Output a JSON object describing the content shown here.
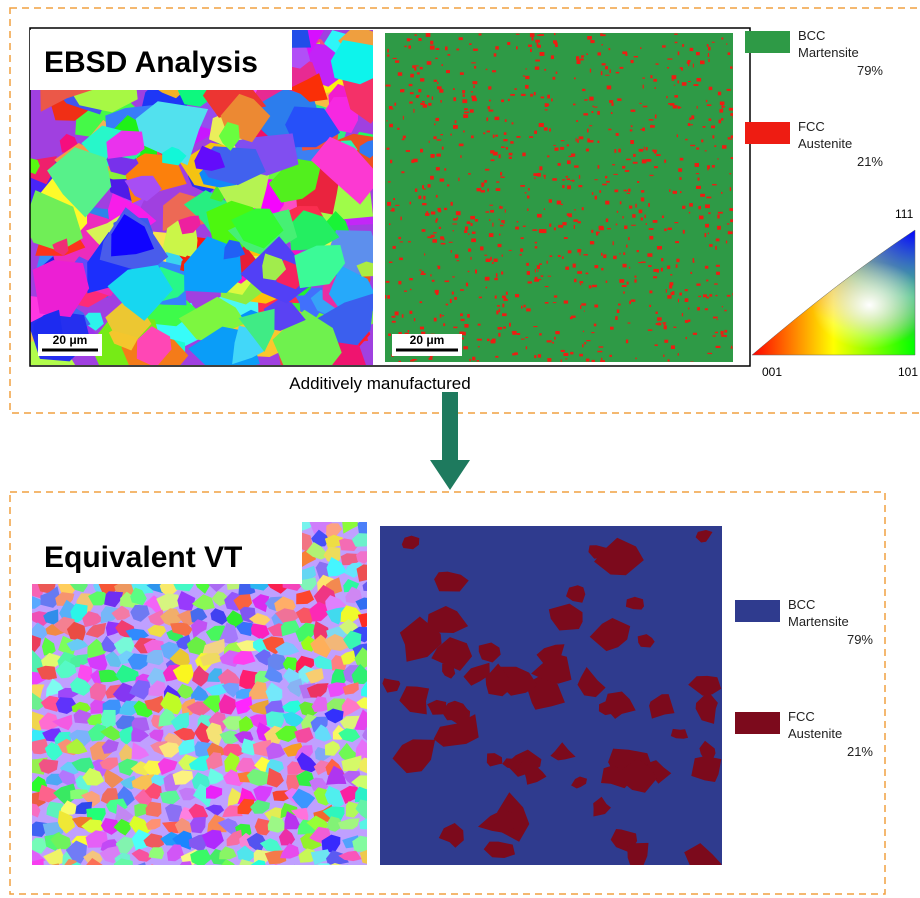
{
  "top_panel": {
    "title": "EBSD Analysis",
    "scale_bars": [
      "20 μm",
      "20 μm"
    ],
    "caption": "Additively manufactured",
    "legend": [
      {
        "phase": "BCC",
        "name": "Martensite",
        "fraction": "79%",
        "color": "#2e9a46"
      },
      {
        "phase": "FCC",
        "name": "Austenite",
        "fraction": "21%",
        "color": "#ee1c12"
      }
    ],
    "ipf_key": {
      "top": "111",
      "left": "001",
      "right": "101"
    }
  },
  "bottom_panel": {
    "title": "Equivalent VT",
    "legend": [
      {
        "phase": "BCC",
        "name": "Martensite",
        "fraction": "79%",
        "color": "#2f3b8e"
      },
      {
        "phase": "FCC",
        "name": "Austenite",
        "fraction": "21%",
        "color": "#7c0a1c"
      }
    ]
  }
}
